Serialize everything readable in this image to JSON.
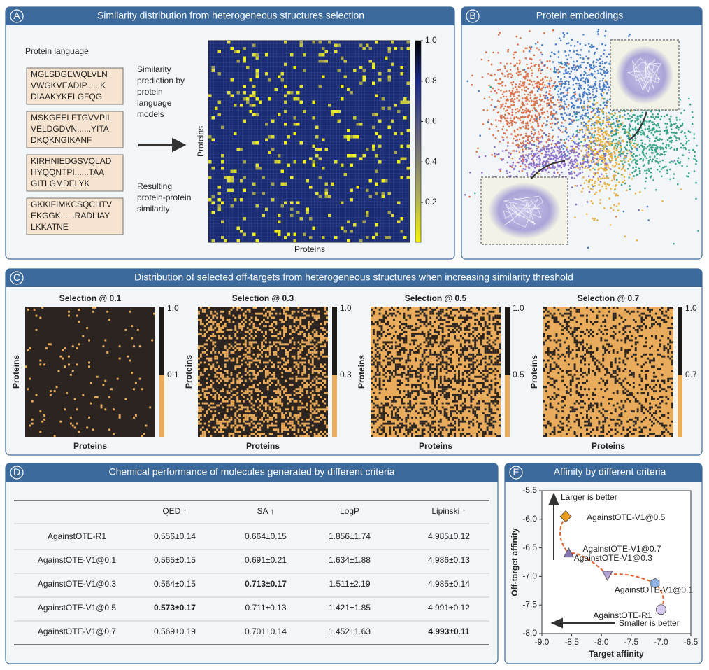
{
  "panels": {
    "A": {
      "letter": "A",
      "title": "Similarity distribution from heterogeneous structures selection",
      "language_label": "Protein language",
      "sequences": [
        [
          "MGLSDGEWQLVLN",
          "VWGKVEADIP......K",
          "DIAAKYKELGFQG"
        ],
        [
          "MSKGEELFTGVVPIL",
          "VELDGDVN......YITA",
          "DKQKNGIKANF"
        ],
        [
          "KIRHNIEDGSVQLAD",
          "HYQQNTPI......TAA",
          "GITLGMDELYK"
        ],
        [
          "GKKIFIMKCSQCHTV",
          "EKGGK......RADLIAY",
          "LKKATNE"
        ]
      ],
      "prediction_label": [
        "Similarity",
        "prediction by",
        "protein",
        "language",
        "models"
      ],
      "result_label": [
        "Resulting",
        "protein-protein",
        "similarity"
      ],
      "xlabel": "Proteins",
      "ylabel": "Proteins",
      "colorbar_ticks": [
        {
          "value": 1,
          "label": "1.0"
        },
        0.8,
        0.6,
        0.4,
        0.2
      ]
    },
    "B": {
      "letter": "B",
      "title": "Protein embeddings"
    },
    "C": {
      "letter": "C",
      "title": "Distribution of selected off-targets from heterogeneous structures when increasing similarity threshold",
      "plots": [
        {
          "title": "Selection @ 0.1",
          "top_label": "1.0",
          "threshold_label": "0.1",
          "xlabel": "Proteins",
          "ylabel": "Proteins"
        },
        {
          "title": "Selection @ 0.3",
          "top_label": "1.0",
          "threshold_label": "0.3",
          "xlabel": "Proteins",
          "ylabel": "Proteins"
        },
        {
          "title": "Selection @ 0.5",
          "top_label": "1.0",
          "threshold_label": "0.5",
          "xlabel": "Proteins",
          "ylabel": "Proteins"
        },
        {
          "title": "Selection @ 0.7",
          "top_label": "1.0",
          "threshold_label": "0.7",
          "xlabel": "Proteins",
          "ylabel": "Proteins"
        }
      ]
    },
    "D": {
      "letter": "D",
      "title": "Chemical performance of molecules generated by different criteria",
      "table": {
        "header": [
          "QED ↑",
          "SA ↑",
          "LogP",
          "Lipinski ↑"
        ],
        "rows": [
          [
            "AgainstOTE-R1",
            "0.556±0.14",
            "0.664±0.15",
            "1.856±1.74",
            "4.985±0.12"
          ],
          [
            "AgainstOTE-V1@0.1",
            "0.565±0.15",
            "0.691±0.21",
            "1.634±1.88",
            "4.986±0.13"
          ],
          [
            "AgainstOTE-V1@0.3",
            "0.564±0.15",
            "0.713±0.17",
            "1.511±2.19",
            "4.985±0.14"
          ],
          [
            "AgainstOTE-V1@0.5",
            "0.573±0.17",
            "0.711±0.13",
            "1.421±1.85",
            "4.991±0.12"
          ],
          [
            "AgainstOTE-V1@0.7",
            "0.569±0.19",
            "0.701±0.14",
            "1.452±1.63",
            "4.993±0.11"
          ]
        ],
        "bold": [
          [
            3,
            1
          ],
          [
            2,
            2
          ],
          [
            4,
            4
          ]
        ]
      }
    },
    "E": {
      "letter": "E"
    }
  },
  "chart_data": {
    "type": "scatter",
    "title": "Affinity by different criteria",
    "xlabel": "Target affinity",
    "ylabel": "Off-target affinity",
    "xlim": [
      -9.0,
      -6.5
    ],
    "ylim": [
      -8.0,
      -5.5
    ],
    "xticks": [
      {
        "value": -9,
        "label": "-9.0"
      },
      -8.5,
      {
        "value": -8,
        "label": "-8.0"
      },
      -7.5,
      {
        "value": -7,
        "label": "-7.0"
      },
      -6.5
    ],
    "yticks": [
      {
        "value": -8,
        "label": "-8.0"
      },
      -7.5,
      {
        "value": -7,
        "label": "-7.0"
      },
      -6.5,
      {
        "value": -6,
        "label": "-6.0"
      },
      -5.5
    ],
    "annotations": [
      "Larger is better",
      "Smaller is better"
    ],
    "series": [
      {
        "name": "AgainstOTE-V1@0.5",
        "color": "#e89a1e",
        "marker": "diamond",
        "x": [
          -8.6
        ],
        "values": [
          -5.95
        ]
      },
      {
        "name": "AgainstOTE-V1@0.7",
        "color": "#8877b5",
        "marker": "triangle",
        "x": [
          -8.55
        ],
        "values": [
          -6.6
        ]
      },
      {
        "name": "AgainstOTE-V1@0.3",
        "color": "#b5a3d6",
        "marker": "triangle-down",
        "x": [
          -7.9
        ],
        "values": [
          -6.97
        ]
      },
      {
        "name": "AgainstOTE-V1@0.1",
        "color": "#8eb0e2",
        "marker": "hexagon",
        "x": [
          -7.1
        ],
        "values": [
          -7.12
        ]
      },
      {
        "name": "AgainstOTE-R1",
        "color": "#d9cbf1",
        "marker": "circle",
        "x": [
          -7.0
        ],
        "values": [
          -7.58
        ]
      }
    ]
  }
}
